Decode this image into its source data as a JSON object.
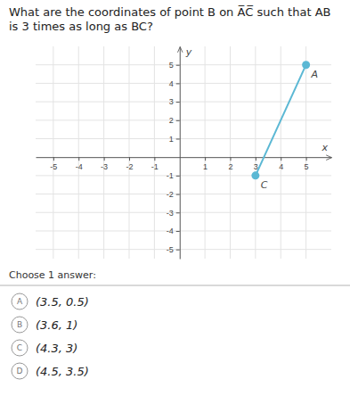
{
  "chart_data": {
    "type": "scatter",
    "title": "What are the coordinates of point B on A̅C̅ such that AB is 3 times as long as BC?",
    "x_label": "x",
    "y_label": "y",
    "xlim": [
      -5.7,
      6.0
    ],
    "ylim": [
      -5.5,
      6.0
    ],
    "xticks": [
      -5,
      -4,
      -3,
      -2,
      -1,
      1,
      2,
      3,
      4,
      5
    ],
    "yticks": [
      -5,
      -4,
      -3,
      -2,
      -1,
      1,
      2,
      3,
      4,
      5
    ],
    "grid": true,
    "series": [
      {
        "color": "#5bb8d4",
        "marker": "circle",
        "line_style": "solid",
        "x": [
          5,
          3
        ],
        "values": [
          5,
          -1
        ],
        "point_labels": [
          "A",
          "C"
        ]
      }
    ],
    "annotations": [
      "Choose 1 answer:"
    ],
    "answer_choices": [
      {
        "letter": "A",
        "text": "(3.5, 0.5)"
      },
      {
        "letter": "B",
        "text": "(3.6, 1)"
      },
      {
        "letter": "C",
        "text": "(4.3, 3)"
      },
      {
        "letter": "D",
        "text": "(4.5, 3.5)"
      }
    ]
  }
}
